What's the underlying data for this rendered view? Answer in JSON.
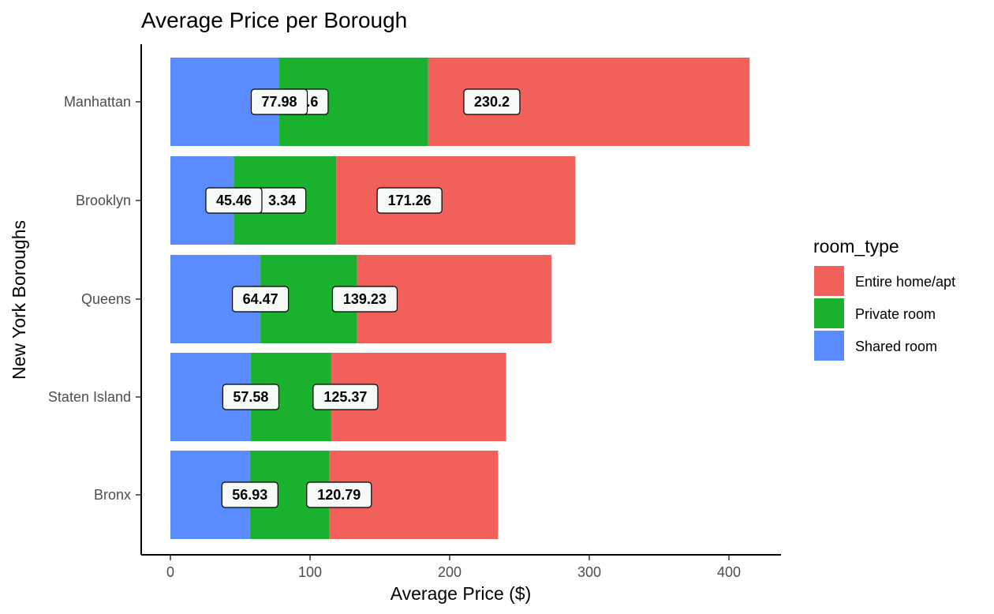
{
  "chart_data": {
    "type": "bar",
    "orientation": "horizontal",
    "stacked": true,
    "title": "Average Price per Borough",
    "xlabel": "Average Price ($)",
    "ylabel": "New York Boroughs",
    "xlim": [
      0,
      420
    ],
    "x_ticks": [
      "0",
      "100",
      "200",
      "300",
      "400"
    ],
    "x_tick_values": [
      0,
      100,
      200,
      300,
      400
    ],
    "categories": [
      "Manhattan",
      "Brooklyn",
      "Queens",
      "Staten Island",
      "Bronx"
    ],
    "series": [
      {
        "name": "Shared room",
        "color": "#5a8cff",
        "values": [
          77.98,
          45.46,
          64.47,
          57.58,
          56.93
        ]
      },
      {
        "name": "Private room",
        "color": "#1ab12e",
        "values": [
          106.6,
          73.34,
          69.2,
          57.4,
          57.0
        ]
      },
      {
        "name": "Entire home/apt",
        "color": "#f2605c",
        "values": [
          230.2,
          171.26,
          139.23,
          125.37,
          120.79
        ]
      }
    ],
    "data_labels": [
      {
        "text": "230.2",
        "x": 230.2,
        "category": "Manhattan"
      },
      {
        "text": "06.6",
        "x": 96,
        "category": "Manhattan"
      },
      {
        "text": "77.98",
        "x": 77.98,
        "category": "Manhattan"
      },
      {
        "text": "171.26",
        "x": 171.26,
        "category": "Brooklyn"
      },
      {
        "text": "3.34",
        "x": 80,
        "category": "Brooklyn"
      },
      {
        "text": "45.46",
        "x": 45.46,
        "category": "Brooklyn"
      },
      {
        "text": "",
        "x": 70,
        "category": "Queens"
      },
      {
        "text": "64.47",
        "x": 64.47,
        "category": "Queens"
      },
      {
        "text": "139.23",
        "x": 139.23,
        "category": "Queens"
      },
      {
        "text": "125.37",
        "x": 125.37,
        "category": "Staten Island"
      },
      {
        "text": "57.58",
        "x": 57.58,
        "category": "Staten Island"
      },
      {
        "text": "120.79",
        "x": 120.79,
        "category": "Bronx"
      },
      {
        "text": "56.93",
        "x": 56.93,
        "category": "Bronx"
      }
    ],
    "legend": {
      "title": "room_type",
      "position": "right",
      "items": [
        {
          "label": "Entire home/apt",
          "color": "#f2605c"
        },
        {
          "label": "Private room",
          "color": "#1ab12e"
        },
        {
          "label": "Shared room",
          "color": "#5a8cff"
        }
      ]
    },
    "grid": false
  }
}
